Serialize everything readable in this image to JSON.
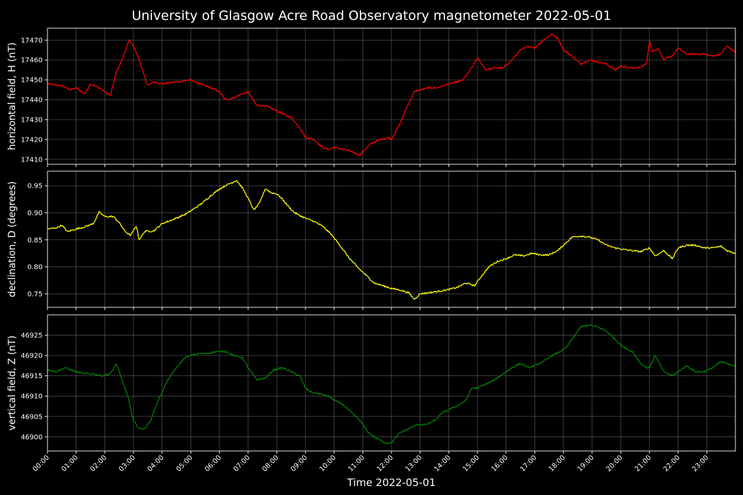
{
  "chart_data": {
    "type": "line",
    "title": "University of Glasgow Acre Road Observatory magnetometer 2022-05-01",
    "xlabel": "Time 2022-05-01",
    "x_ticks": [
      "00:00",
      "01:00",
      "02:00",
      "03:00",
      "04:00",
      "05:00",
      "06:00",
      "07:00",
      "08:00",
      "09:00",
      "10:00",
      "11:00",
      "12:00",
      "13:00",
      "14:00",
      "15:00",
      "16:00",
      "17:00",
      "18:00",
      "19:00",
      "20:00",
      "21:00",
      "22:00",
      "23:00"
    ],
    "xlim": [
      0,
      24
    ],
    "grid": true,
    "panels": [
      {
        "ylabel": "horizontal field, H (nT)",
        "color": "#ff0000",
        "ylim": [
          17407.5,
          17476
        ],
        "y_ticks": [
          "17410",
          "17420",
          "17430",
          "17440",
          "17450",
          "17460",
          "17470"
        ],
        "x": [
          0,
          0.5,
          0.8,
          1.0,
          1.3,
          1.5,
          1.8,
          2.0,
          2.2,
          2.4,
          2.6,
          2.85,
          3.0,
          3.2,
          3.5,
          3.7,
          4.0,
          4.5,
          5.0,
          5.3,
          5.7,
          6.0,
          6.2,
          6.5,
          6.8,
          7.0,
          7.3,
          7.6,
          7.9,
          8.2,
          8.5,
          8.8,
          9.0,
          9.3,
          9.6,
          9.8,
          10.0,
          10.3,
          10.6,
          10.9,
          11.0,
          11.3,
          11.6,
          11.9,
          12.0,
          12.3,
          12.5,
          12.8,
          13.0,
          13.3,
          13.6,
          14.0,
          14.3,
          14.5,
          14.8,
          15.0,
          15.3,
          15.6,
          15.9,
          16.2,
          16.5,
          16.8,
          17.0,
          17.3,
          17.6,
          17.8,
          18.0,
          18.3,
          18.6,
          18.9,
          19.2,
          19.5,
          19.8,
          20.0,
          20.3,
          20.6,
          20.9,
          21.0,
          21.1,
          21.3,
          21.5,
          21.8,
          22.0,
          22.3,
          22.6,
          22.9,
          23.2,
          23.5,
          23.7,
          24.0
        ],
        "values": [
          17448,
          17447,
          17445,
          17446,
          17443,
          17448,
          17446,
          17444,
          17442,
          17454,
          17460,
          17470,
          17467,
          17460,
          17447,
          17449,
          17448,
          17449,
          17450,
          17448,
          17446,
          17444,
          17440,
          17441,
          17443,
          17444,
          17437,
          17437,
          17435,
          17433,
          17431,
          17426,
          17421,
          17420,
          17416,
          17415,
          17416,
          17415,
          17414,
          17412,
          17414,
          17418,
          17420,
          17421,
          17420,
          17428,
          17435,
          17444,
          17445,
          17446,
          17446,
          17448,
          17449,
          17450,
          17456,
          17461,
          17455,
          17456,
          17456,
          17460,
          17465,
          17467,
          17466,
          17470,
          17473,
          17471,
          17465,
          17462,
          17458,
          17460,
          17459,
          17458,
          17455,
          17457,
          17456,
          17456,
          17458,
          17470,
          17464,
          17466,
          17460,
          17462,
          17466,
          17463,
          17463,
          17463,
          17462,
          17463,
          17467,
          17464
        ]
      },
      {
        "ylabel": "declination, D (degrees)",
        "color": "#ffff00",
        "ylim": [
          0.725,
          0.977
        ],
        "y_ticks": [
          "0.75",
          "0.80",
          "0.85",
          "0.90",
          "0.95"
        ],
        "x": [
          0,
          0.3,
          0.5,
          0.7,
          1.0,
          1.3,
          1.6,
          1.8,
          2.0,
          2.3,
          2.5,
          2.7,
          2.9,
          3.1,
          3.2,
          3.4,
          3.7,
          4.0,
          4.4,
          4.8,
          5.1,
          5.4,
          5.7,
          6.0,
          6.2,
          6.4,
          6.6,
          6.8,
          7.0,
          7.2,
          7.4,
          7.6,
          7.8,
          8.0,
          8.2,
          8.4,
          8.6,
          8.8,
          9.0,
          9.3,
          9.6,
          9.9,
          10.2,
          10.5,
          10.8,
          11.1,
          11.4,
          11.7,
          12.0,
          12.3,
          12.6,
          12.8,
          13.0,
          13.3,
          13.7,
          14.0,
          14.3,
          14.6,
          14.9,
          15.1,
          15.4,
          15.7,
          16.0,
          16.3,
          16.6,
          16.9,
          17.2,
          17.5,
          17.8,
          18.0,
          18.3,
          18.6,
          18.9,
          19.2,
          19.5,
          19.8,
          20.1,
          20.4,
          20.7,
          21.0,
          21.2,
          21.5,
          21.8,
          22.0,
          22.3,
          22.6,
          22.9,
          23.2,
          23.5,
          23.7,
          24.0
        ],
        "values": [
          0.87,
          0.872,
          0.877,
          0.865,
          0.87,
          0.874,
          0.88,
          0.901,
          0.893,
          0.893,
          0.882,
          0.866,
          0.858,
          0.876,
          0.85,
          0.866,
          0.866,
          0.88,
          0.888,
          0.897,
          0.907,
          0.918,
          0.932,
          0.944,
          0.95,
          0.955,
          0.96,
          0.946,
          0.927,
          0.905,
          0.918,
          0.945,
          0.937,
          0.935,
          0.925,
          0.912,
          0.901,
          0.895,
          0.89,
          0.884,
          0.875,
          0.86,
          0.84,
          0.818,
          0.8,
          0.785,
          0.77,
          0.765,
          0.76,
          0.757,
          0.752,
          0.74,
          0.75,
          0.752,
          0.755,
          0.758,
          0.762,
          0.77,
          0.765,
          0.78,
          0.8,
          0.81,
          0.815,
          0.822,
          0.82,
          0.825,
          0.822,
          0.822,
          0.83,
          0.84,
          0.855,
          0.857,
          0.855,
          0.85,
          0.84,
          0.835,
          0.832,
          0.83,
          0.828,
          0.835,
          0.82,
          0.83,
          0.815,
          0.835,
          0.84,
          0.84,
          0.835,
          0.835,
          0.838,
          0.83,
          0.825
        ]
      },
      {
        "ylabel": "vertical field, Z (nT)",
        "color": "#008000",
        "ylim": [
          46896.5,
          46930
        ],
        "y_ticks": [
          "46900",
          "46905",
          "46910",
          "46915",
          "46920",
          "46925"
        ],
        "x": [
          0,
          0.3,
          0.6,
          0.8,
          1.0,
          1.3,
          1.6,
          1.9,
          2.2,
          2.4,
          2.6,
          2.8,
          3.0,
          3.2,
          3.4,
          3.6,
          3.8,
          4.0,
          4.2,
          4.5,
          4.8,
          5.0,
          5.3,
          5.6,
          5.9,
          6.2,
          6.5,
          6.8,
          7.0,
          7.3,
          7.6,
          7.9,
          8.2,
          8.5,
          8.8,
          9.0,
          9.2,
          9.5,
          9.8,
          10.0,
          10.3,
          10.6,
          10.9,
          11.2,
          11.5,
          11.8,
          12.0,
          12.3,
          12.6,
          12.9,
          13.2,
          13.5,
          13.8,
          14.1,
          14.4,
          14.6,
          14.8,
          15.0,
          15.3,
          15.6,
          15.9,
          16.2,
          16.5,
          16.8,
          17.0,
          17.3,
          17.6,
          17.9,
          18.1,
          18.3,
          18.6,
          18.9,
          19.2,
          19.5,
          19.8,
          20.1,
          20.4,
          20.7,
          20.9,
          21.0,
          21.2,
          21.5,
          21.8,
          22.0,
          22.3,
          22.6,
          22.9,
          23.2,
          23.5,
          23.7,
          24.0
        ],
        "values": [
          46916.5,
          46916,
          46917,
          46916.5,
          46916,
          46915.5,
          46915.5,
          46915,
          46915.5,
          46918,
          46914,
          46910,
          46904,
          46902,
          46902,
          46904,
          46908,
          46911,
          46914,
          46917,
          46919.5,
          46920,
          46920.5,
          46920.5,
          46921,
          46921,
          46920,
          46919.5,
          46917,
          46914,
          46914.5,
          46916.5,
          46917,
          46916,
          46915,
          46912,
          46911,
          46910.5,
          46910,
          46909,
          46908,
          46906,
          46904,
          46901,
          46899.5,
          46898.5,
          46898.5,
          46901,
          46902,
          46903,
          46903,
          46904,
          46906,
          46907,
          46908,
          46909,
          46912,
          46912,
          46913,
          46914,
          46915.5,
          46917,
          46918,
          46917,
          46917.5,
          46918.5,
          46920,
          46921,
          46922,
          46924,
          46927,
          46927.5,
          46927,
          46926,
          46924,
          46922,
          46921,
          46918,
          46917,
          46917,
          46920,
          46916,
          46915,
          46916,
          46917.5,
          46916,
          46916,
          46917,
          46918.5,
          46918,
          46917.5
        ]
      }
    ]
  }
}
